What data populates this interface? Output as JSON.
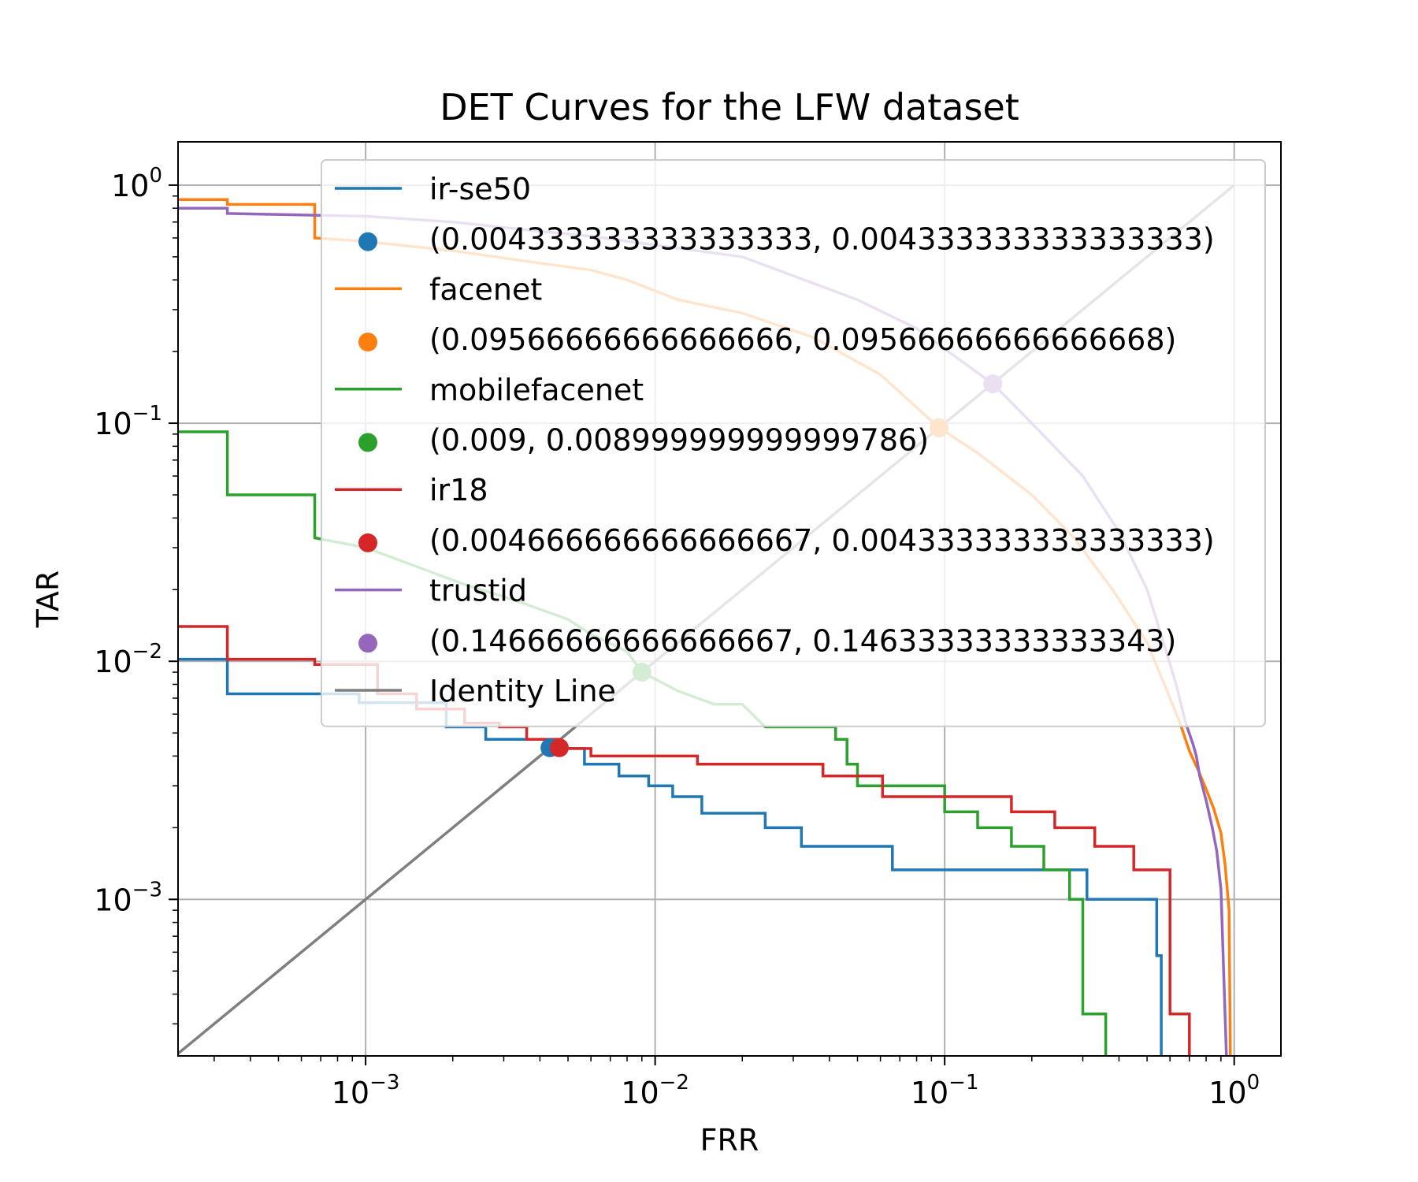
{
  "chart_data": {
    "type": "line",
    "title": "DET Curves for the LFW dataset",
    "xlabel": "FRR",
    "ylabel": "TAR",
    "xscale": "log",
    "yscale": "log",
    "xlim": [
      0.000225,
      1.45
    ],
    "ylim": [
      0.00022,
      1.52
    ],
    "grid": true,
    "legend_position": "top-right",
    "x_ticks": [
      {
        "value": 0.001,
        "base": "10",
        "exp": "−3"
      },
      {
        "value": 0.01,
        "base": "10",
        "exp": "−2"
      },
      {
        "value": 0.1,
        "base": "10",
        "exp": "−1"
      },
      {
        "value": 1,
        "base": "10",
        "exp": "0"
      }
    ],
    "y_ticks": [
      {
        "value": 0.001,
        "base": "10",
        "exp": "−3"
      },
      {
        "value": 0.01,
        "base": "10",
        "exp": "−2"
      },
      {
        "value": 0.1,
        "base": "10",
        "exp": "−1"
      },
      {
        "value": 1,
        "base": "10",
        "exp": "0"
      }
    ],
    "series": [
      {
        "name": "ir-se50",
        "color": "#1f77b4",
        "marker_label": "(0.004333333333333333, 0.004333333333333333)",
        "marker": [
          0.004333333333333333,
          0.004333333333333333
        ],
        "x": [
          0.0002,
          0.000333,
          0.000333,
          0.00095,
          0.00095,
          0.0019,
          0.0019,
          0.0026,
          0.0026,
          0.0042,
          0.0042,
          0.0057,
          0.0057,
          0.0075,
          0.0075,
          0.0095,
          0.0095,
          0.0115,
          0.0115,
          0.0145,
          0.0145,
          0.024,
          0.024,
          0.032,
          0.032,
          0.066,
          0.066,
          0.093,
          0.093,
          0.31,
          0.31,
          0.54,
          0.54,
          0.56,
          0.56
        ],
        "y": [
          0.0102,
          0.0102,
          0.0073,
          0.0073,
          0.0067,
          0.0067,
          0.0053,
          0.0053,
          0.0047,
          0.0047,
          0.0043,
          0.0043,
          0.0037,
          0.0037,
          0.0033,
          0.0033,
          0.003,
          0.003,
          0.0027,
          0.0027,
          0.0023,
          0.0023,
          0.002,
          0.002,
          0.00167,
          0.00167,
          0.00133,
          0.00133,
          0.00133,
          0.00133,
          0.001,
          0.001,
          0.00058,
          0.00058,
          0.00022
        ]
      },
      {
        "name": "facenet",
        "color": "#ff7f0e",
        "marker_label": "(0.09566666666666666, 0.09566666666666668)",
        "marker": [
          0.09566666666666666,
          0.09566666666666668
        ],
        "x": [
          0.0002,
          0.000333,
          0.000333,
          0.000667,
          0.000667,
          0.001,
          0.002,
          0.004,
          0.006,
          0.008,
          0.012,
          0.02,
          0.035,
          0.06,
          0.09566666666666666,
          0.13,
          0.2,
          0.28,
          0.38,
          0.5,
          0.6,
          0.65,
          0.7,
          0.75,
          0.8,
          0.85,
          0.9,
          0.93,
          0.96,
          0.97
        ],
        "y": [
          0.87,
          0.87,
          0.83,
          0.83,
          0.6,
          0.58,
          0.53,
          0.47,
          0.44,
          0.4,
          0.33,
          0.29,
          0.23,
          0.16,
          0.09566666666666668,
          0.075,
          0.05,
          0.033,
          0.02,
          0.012,
          0.007,
          0.0055,
          0.0042,
          0.0035,
          0.0029,
          0.0024,
          0.0019,
          0.0014,
          0.0009,
          0.00022
        ]
      },
      {
        "name": "mobilefacenet",
        "color": "#2ca02c",
        "marker_label": "(0.009, 0.008999999999999786)",
        "marker": [
          0.009,
          0.008999999999999786
        ],
        "x": [
          0.0002,
          0.000333,
          0.000333,
          0.000667,
          0.000667,
          0.001,
          0.0015,
          0.0022,
          0.0033,
          0.005,
          0.006,
          0.008,
          0.009,
          0.012,
          0.016,
          0.02,
          0.024,
          0.024,
          0.042,
          0.042,
          0.046,
          0.046,
          0.05,
          0.05,
          0.1,
          0.1,
          0.13,
          0.13,
          0.17,
          0.17,
          0.22,
          0.22,
          0.27,
          0.27,
          0.3,
          0.3,
          0.36,
          0.36
        ],
        "y": [
          0.092,
          0.092,
          0.05,
          0.05,
          0.033,
          0.03,
          0.025,
          0.021,
          0.018,
          0.015,
          0.013,
          0.011,
          0.009,
          0.0075,
          0.0066,
          0.0066,
          0.0053,
          0.0053,
          0.0053,
          0.0047,
          0.0047,
          0.0037,
          0.0037,
          0.003,
          0.003,
          0.00233,
          0.00233,
          0.002,
          0.002,
          0.00167,
          0.00167,
          0.00133,
          0.00133,
          0.001,
          0.001,
          0.00033,
          0.00033,
          0.00022
        ]
      },
      {
        "name": "ir18",
        "color": "#d62728",
        "marker_label": "(0.004666666666666667, 0.004333333333333333)",
        "marker": [
          0.004666666666666667,
          0.004333333333333333
        ],
        "x": [
          0.0002,
          0.000333,
          0.000333,
          0.000667,
          0.000667,
          0.0011,
          0.0011,
          0.0015,
          0.0015,
          0.0022,
          0.0022,
          0.0029,
          0.0029,
          0.0036,
          0.0036,
          0.0047,
          0.0047,
          0.006,
          0.006,
          0.014,
          0.014,
          0.038,
          0.038,
          0.061,
          0.061,
          0.17,
          0.17,
          0.24,
          0.24,
          0.33,
          0.33,
          0.45,
          0.45,
          0.6,
          0.6,
          0.7,
          0.7
        ],
        "y": [
          0.014,
          0.014,
          0.0102,
          0.0102,
          0.0097,
          0.0097,
          0.0073,
          0.0073,
          0.0063,
          0.0063,
          0.0055,
          0.0055,
          0.0053,
          0.0053,
          0.0047,
          0.0047,
          0.0043,
          0.0043,
          0.004,
          0.004,
          0.0037,
          0.0037,
          0.0033,
          0.0033,
          0.0027,
          0.0027,
          0.00233,
          0.00233,
          0.002,
          0.002,
          0.00167,
          0.00167,
          0.00133,
          0.00133,
          0.00033,
          0.00033,
          0.00022
        ]
      },
      {
        "name": "trustid",
        "color": "#9467bd",
        "marker_label": "(0.14666666666666667, 0.14633333333333343)",
        "marker": [
          0.14666666666666667,
          0.14633333333333343
        ],
        "x": [
          0.0002,
          0.000333,
          0.000333,
          0.001,
          0.002,
          0.004,
          0.006,
          0.01,
          0.02,
          0.05,
          0.08,
          0.14666666666666667,
          0.2,
          0.3,
          0.4,
          0.5,
          0.57,
          0.63,
          0.68,
          0.72,
          0.74,
          0.76,
          0.8,
          0.84,
          0.87,
          0.9,
          0.94
        ],
        "y": [
          0.8,
          0.8,
          0.76,
          0.74,
          0.7,
          0.64,
          0.61,
          0.56,
          0.5,
          0.33,
          0.25,
          0.14633333333333343,
          0.1,
          0.06,
          0.035,
          0.02,
          0.012,
          0.008,
          0.0055,
          0.0045,
          0.004,
          0.0033,
          0.0026,
          0.002,
          0.0016,
          0.0011,
          0.00022
        ]
      },
      {
        "name": "Identity Line",
        "color": "#7f7f7f",
        "x": [
          0.0002,
          1
        ],
        "y": [
          0.0002,
          1
        ]
      }
    ]
  }
}
